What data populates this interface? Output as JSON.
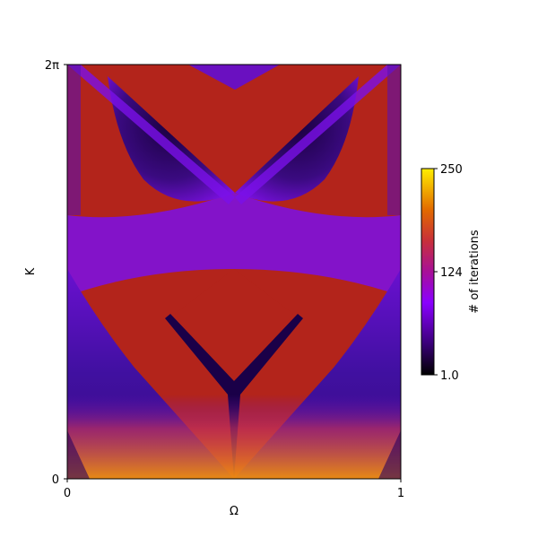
{
  "chart_data": {
    "type": "heatmap",
    "title": "",
    "xlabel": "Ω",
    "ylabel": "K",
    "xlim": [
      0,
      1
    ],
    "ylim": [
      0,
      6.283185307
    ],
    "x_ticks": [
      {
        "value": 0,
        "label": "0"
      },
      {
        "value": 1,
        "label": "1"
      }
    ],
    "y_ticks": [
      {
        "value": 0,
        "label": "0"
      },
      {
        "value": 6.283185307,
        "label": "2π"
      }
    ],
    "colormap": "gnuplot",
    "colorbar": {
      "label": "# of iterations",
      "range": [
        1.0,
        250
      ],
      "ticks": [
        {
          "value": 1.0,
          "label": "1.0"
        },
        {
          "value": 124,
          "label": "124"
        },
        {
          "value": 250,
          "label": "250"
        }
      ],
      "colors": [
        "#000000",
        "#5a00b4",
        "#8a00ff",
        "#b8206e",
        "#cf3a00",
        "#e67d00",
        "#ffee00"
      ]
    },
    "regions": [
      {
        "name": "background",
        "value": 120,
        "color": "#b3241b"
      },
      {
        "name": "arnold tongue left",
        "value": 60,
        "color": "#4a10a0"
      },
      {
        "name": "arnold tongue right",
        "value": 60,
        "color": "#4a10a0"
      },
      {
        "name": "central V",
        "value": 30,
        "color": "#1a0048"
      },
      {
        "name": "base noise",
        "value": 180,
        "color": "#e07a10"
      }
    ]
  }
}
